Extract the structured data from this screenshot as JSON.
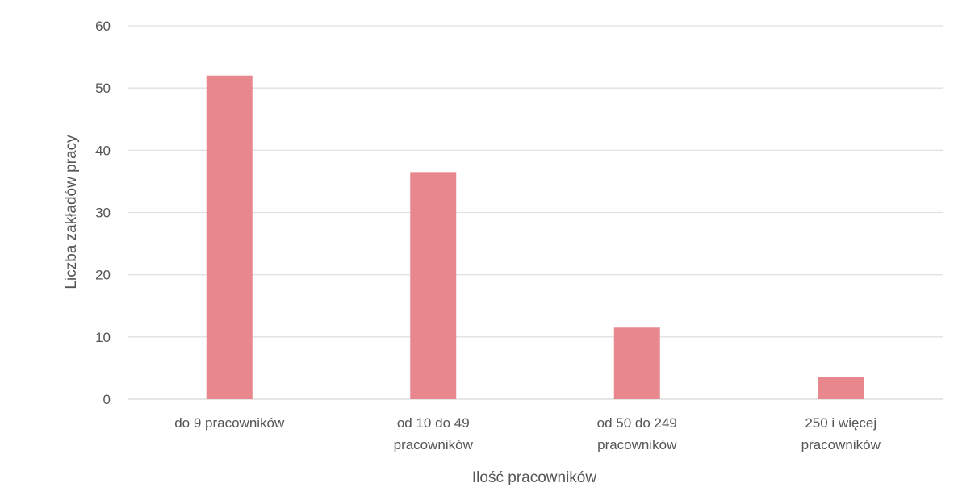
{
  "chart_data": {
    "type": "bar",
    "categories": [
      [
        "do 9 pracowników"
      ],
      [
        "od 10 do 49",
        "pracowników"
      ],
      [
        "od 50 do 249",
        "pracowników"
      ],
      [
        "250 i więcej",
        "pracowników"
      ]
    ],
    "values": [
      52,
      36.5,
      11.5,
      3.5
    ],
    "ylim": [
      0,
      60
    ],
    "yticks": [
      0,
      10,
      20,
      30,
      40,
      50,
      60
    ],
    "xlabel": "Ilość pracowników",
    "ylabel": "Liczba zakładów pracy",
    "title": "",
    "grid": true,
    "legend": "none",
    "bar_color": "#e9878e"
  }
}
